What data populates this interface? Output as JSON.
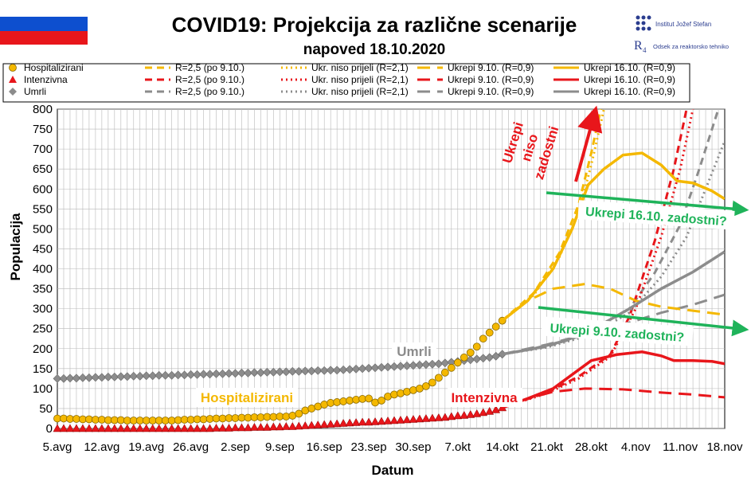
{
  "header": {
    "title": "COVID19: Projekcija za različne scenarije",
    "subtitle": "napoved 18.10.2020",
    "institute_line1": "Institut Jožef Stefan",
    "institute_line2": "Odsek za reaktorsko tehniko",
    "flag_colors": [
      "#ffffff",
      "#0d4fcf",
      "#e8161b"
    ]
  },
  "colors": {
    "hosp": "#f4b800",
    "icu": "#e8161b",
    "deaths": "#8c8c8c",
    "annot": "#1fb35a",
    "grid": "#b8b8b8"
  },
  "chart_data": {
    "type": "line",
    "xlabel": "Datum",
    "ylabel": "Populacija",
    "ylim": [
      0,
      800
    ],
    "y_ticks": [
      "0",
      "50",
      "100",
      "150",
      "200",
      "250",
      "300",
      "350",
      "400",
      "450",
      "500",
      "550",
      "600",
      "650",
      "700",
      "750",
      "800"
    ],
    "x_range_days": [
      0,
      105
    ],
    "x_ticks": [
      {
        "day": 0,
        "label": "5.avg"
      },
      {
        "day": 7,
        "label": "12.avg"
      },
      {
        "day": 14,
        "label": "19.avg"
      },
      {
        "day": 21,
        "label": "26.avg"
      },
      {
        "day": 28,
        "label": "2.sep"
      },
      {
        "day": 35,
        "label": "9.sep"
      },
      {
        "day": 42,
        "label": "16.sep"
      },
      {
        "day": 49,
        "label": "23.sep"
      },
      {
        "day": 56,
        "label": "30.sep"
      },
      {
        "day": 63,
        "label": "7.okt"
      },
      {
        "day": 70,
        "label": "14.okt"
      },
      {
        "day": 77,
        "label": "21.okt"
      },
      {
        "day": 84,
        "label": "28.okt"
      },
      {
        "day": 91,
        "label": "4.nov"
      },
      {
        "day": 98,
        "label": "11.nov"
      },
      {
        "day": 105,
        "label": "18.nov"
      }
    ],
    "grid": true,
    "legend_placement": "top",
    "legend": [
      {
        "label": "Hospitalizirani",
        "marker": "circle",
        "color": "#f4b800"
      },
      {
        "label": "Intenzivna",
        "marker": "triangle",
        "color": "#e8161b"
      },
      {
        "label": "Umrli",
        "marker": "diamond",
        "color": "#8c8c8c"
      },
      {
        "label": "R=2,5 (po 9.10.)",
        "dash": "dashed",
        "color": "#f4b800"
      },
      {
        "label": "R=2,5 (po 9.10.)",
        "dash": "dashed",
        "color": "#e8161b"
      },
      {
        "label": "R=2,5 (po 9.10.)",
        "dash": "dashed",
        "color": "#8c8c8c"
      },
      {
        "label": "Ukr. niso prijeli (R=2,1)",
        "dash": "dotted",
        "color": "#f4b800"
      },
      {
        "label": "Ukr. niso prijeli (R=2,1)",
        "dash": "dotted",
        "color": "#e8161b"
      },
      {
        "label": "Ukr. niso prijeli (R=2,1)",
        "dash": "dotted",
        "color": "#8c8c8c"
      },
      {
        "label": "Ukrepi 9.10. (R=0,9)",
        "dash": "longdash",
        "color": "#f4b800"
      },
      {
        "label": "Ukrepi 9.10. (R=0,9)",
        "dash": "longdash",
        "color": "#e8161b"
      },
      {
        "label": "Ukrepi 9.10. (R=0,9)",
        "dash": "longdash",
        "color": "#8c8c8c"
      },
      {
        "label": "Ukrepi 16.10. (R=0,9)",
        "dash": "solid",
        "color": "#f4b800"
      },
      {
        "label": "Ukrepi 16.10. (R=0,9)",
        "dash": "solid",
        "color": "#e8161b"
      },
      {
        "label": "Ukrepi 16.10. (R=0,9)",
        "dash": "solid",
        "color": "#8c8c8c"
      }
    ],
    "observed": {
      "hosp": [
        25,
        25,
        24,
        24,
        23,
        23,
        22,
        22,
        21,
        21,
        21,
        20,
        20,
        20,
        20,
        20,
        20,
        20,
        20,
        21,
        22,
        22,
        23,
        23,
        24,
        25,
        25,
        26,
        26,
        27,
        27,
        28,
        28,
        29,
        29,
        30,
        30,
        32,
        37,
        45,
        50,
        55,
        60,
        64,
        66,
        68,
        70,
        72,
        74,
        75,
        65,
        70,
        80,
        85,
        88,
        92,
        96,
        100,
        106,
        115,
        127,
        140,
        152,
        165,
        178,
        190,
        205,
        225,
        240,
        255,
        270
      ],
      "icu": [
        0,
        0,
        0,
        0,
        0,
        0,
        0,
        0,
        0,
        0,
        0,
        0,
        0,
        0,
        0,
        0,
        0,
        0,
        0,
        0,
        0,
        0,
        0,
        0,
        0,
        1,
        1,
        1,
        2,
        2,
        2,
        3,
        3,
        3,
        4,
        4,
        5,
        5,
        6,
        7,
        8,
        9,
        10,
        11,
        12,
        13,
        14,
        15,
        16,
        16,
        17,
        18,
        19,
        20,
        21,
        22,
        23,
        24,
        25,
        26,
        27,
        28,
        30,
        32,
        33,
        35,
        37,
        40,
        43,
        47,
        52
      ],
      "deaths": [
        125,
        125,
        126,
        126,
        127,
        127,
        128,
        128,
        129,
        129,
        130,
        130,
        131,
        131,
        132,
        132,
        133,
        133,
        133,
        134,
        134,
        135,
        135,
        136,
        136,
        137,
        137,
        138,
        138,
        139,
        139,
        140,
        140,
        141,
        141,
        142,
        142,
        143,
        143,
        144,
        144,
        145,
        145,
        146,
        146,
        147,
        148,
        149,
        150,
        151,
        152,
        153,
        154,
        155,
        156,
        157,
        158,
        159,
        160,
        161,
        162,
        164,
        166,
        168,
        170,
        172,
        174,
        176,
        178,
        181,
        186
      ]
    },
    "scenarios": [
      {
        "name": "R=2,5 (po 9.10.)",
        "dash": "dashed",
        "hosp": [
          [
            70,
            270
          ],
          [
            75,
            340
          ],
          [
            79,
            440
          ],
          [
            82,
            560
          ],
          [
            84,
            690
          ],
          [
            85.5,
            800
          ]
        ],
        "icu": [
          [
            70,
            52
          ],
          [
            77,
            90
          ],
          [
            82,
            130
          ],
          [
            87,
            185
          ],
          [
            90,
            280
          ],
          [
            94,
            470
          ],
          [
            97,
            650
          ],
          [
            99,
            800
          ]
        ],
        "deaths": [
          [
            70,
            186
          ],
          [
            77,
            205
          ],
          [
            84,
            240
          ],
          [
            90,
            300
          ],
          [
            94,
            390
          ],
          [
            98,
            510
          ],
          [
            101,
            650
          ],
          [
            104,
            800
          ]
        ]
      },
      {
        "name": "Ukr. niso prijeli (R=2,1)",
        "dash": "dotted",
        "hosp": [
          [
            70,
            270
          ],
          [
            75,
            335
          ],
          [
            79,
            430
          ],
          [
            82,
            540
          ],
          [
            84,
            660
          ],
          [
            86,
            800
          ]
        ],
        "icu": [
          [
            70,
            52
          ],
          [
            77,
            88
          ],
          [
            82,
            125
          ],
          [
            87,
            180
          ],
          [
            91,
            300
          ],
          [
            95,
            480
          ],
          [
            98,
            650
          ],
          [
            100,
            800
          ]
        ],
        "deaths": [
          [
            70,
            186
          ],
          [
            77,
            203
          ],
          [
            84,
            235
          ],
          [
            90,
            290
          ],
          [
            95,
            380
          ],
          [
            99,
            480
          ],
          [
            102,
            600
          ],
          [
            105,
            720
          ]
        ]
      },
      {
        "name": "Ukrepi 9.10. (R=0,9)",
        "dash": "longdash",
        "hosp": [
          [
            70,
            270
          ],
          [
            74,
            320
          ],
          [
            78,
            350
          ],
          [
            83,
            362
          ],
          [
            87,
            350
          ],
          [
            91,
            320
          ],
          [
            95,
            305
          ],
          [
            100,
            295
          ],
          [
            105,
            285
          ]
        ],
        "icu": [
          [
            70,
            52
          ],
          [
            74,
            75
          ],
          [
            78,
            92
          ],
          [
            83,
            100
          ],
          [
            89,
            98
          ],
          [
            95,
            90
          ],
          [
            100,
            85
          ],
          [
            105,
            78
          ]
        ],
        "deaths": [
          [
            70,
            186
          ],
          [
            77,
            210
          ],
          [
            84,
            240
          ],
          [
            90,
            265
          ],
          [
            95,
            290
          ],
          [
            100,
            310
          ],
          [
            105,
            335
          ]
        ]
      },
      {
        "name": "Ukrepi 16.10. (R=0,9)",
        "dash": "solid",
        "hosp": [
          [
            70,
            270
          ],
          [
            74,
            320
          ],
          [
            78,
            400
          ],
          [
            81,
            500
          ],
          [
            83.5,
            610
          ],
          [
            86,
            650
          ],
          [
            89,
            685
          ],
          [
            92,
            690
          ],
          [
            95,
            660
          ],
          [
            97.5,
            620
          ],
          [
            100,
            615
          ],
          [
            103,
            595
          ],
          [
            105,
            575
          ]
        ],
        "icu": [
          [
            70,
            52
          ],
          [
            74,
            75
          ],
          [
            78,
            100
          ],
          [
            81,
            135
          ],
          [
            84,
            170
          ],
          [
            88,
            185
          ],
          [
            92,
            192
          ],
          [
            95,
            182
          ],
          [
            97,
            170
          ],
          [
            100,
            170
          ],
          [
            103,
            168
          ],
          [
            105,
            162
          ]
        ],
        "deaths": [
          [
            70,
            186
          ],
          [
            75,
            200
          ],
          [
            80,
            220
          ],
          [
            85,
            255
          ],
          [
            90,
            300
          ],
          [
            95,
            350
          ],
          [
            100,
            392
          ],
          [
            105,
            443
          ]
        ]
      }
    ],
    "annotations": {
      "umrli": "Umrli",
      "hospitalizirani": "Hospitalizirani",
      "intenzivna": "Intenzivna",
      "ukrepi_line1": "Ukrepi",
      "ukrepi_line2": "niso",
      "ukrepi_line3": "zadostni",
      "ukrepi16": "Ukrepi 16.10. zadostni?",
      "ukrepi9": "Ukrepi 9.10. zadostni?"
    }
  }
}
